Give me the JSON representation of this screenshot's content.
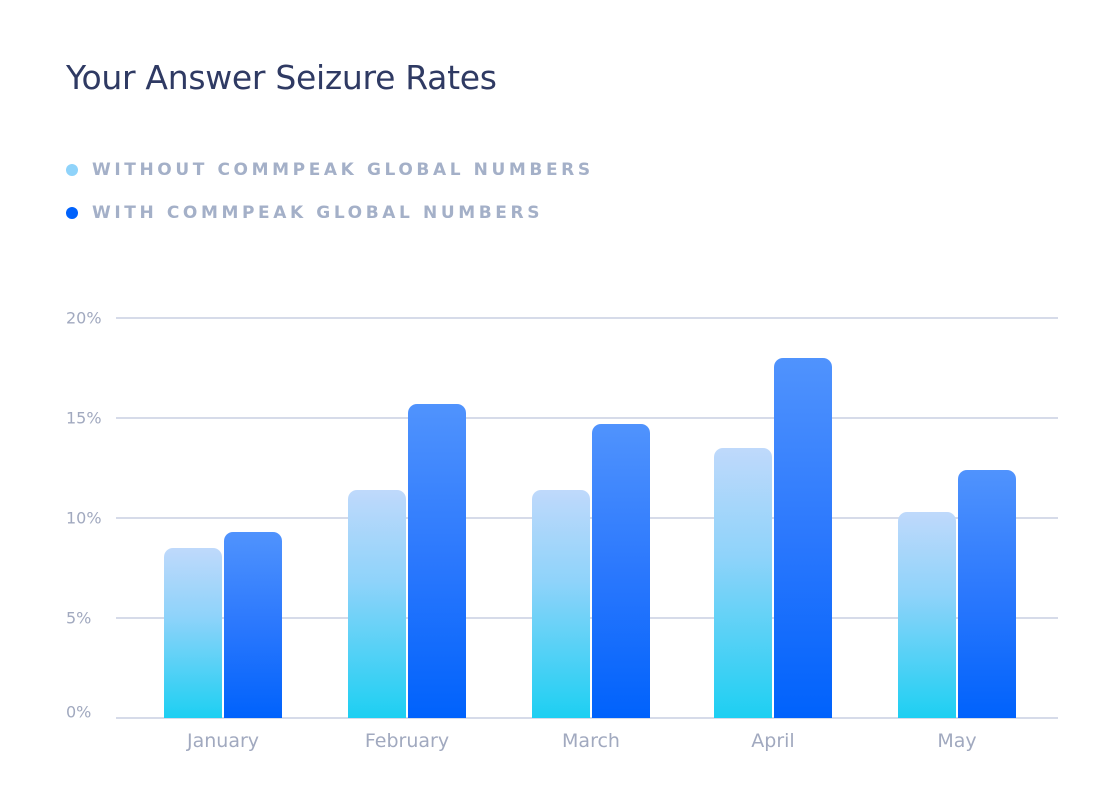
{
  "title": "Your Answer Seizure Rates",
  "legend": [
    {
      "label": "WITHOUT COMMPEAK GLOBAL NUMBERS",
      "color": "#8fd3fa"
    },
    {
      "label": "WITH COMMPEAK GLOBAL NUMBERS",
      "color": "#0062fc"
    }
  ],
  "yticks": [
    "0%",
    "5%",
    "10%",
    "15%",
    "20%"
  ],
  "xticks": [
    "January",
    "February",
    "March",
    "April",
    "May"
  ],
  "chart_data": {
    "type": "bar",
    "title": "Your Answer Seizure Rates",
    "categories": [
      "January",
      "February",
      "March",
      "April",
      "May"
    ],
    "series": [
      {
        "name": "Without CommPeak Global Numbers",
        "values": [
          8.5,
          11.4,
          11.4,
          13.5,
          10.3
        ]
      },
      {
        "name": "With CommPeak Global Numbers",
        "values": [
          9.3,
          15.7,
          14.7,
          18.0,
          12.4
        ]
      }
    ],
    "xlabel": "",
    "ylabel": "",
    "ylim": [
      0,
      20
    ],
    "ytick_step": 5,
    "ytick_format": "%",
    "grid": true,
    "legend_position": "top-left"
  }
}
